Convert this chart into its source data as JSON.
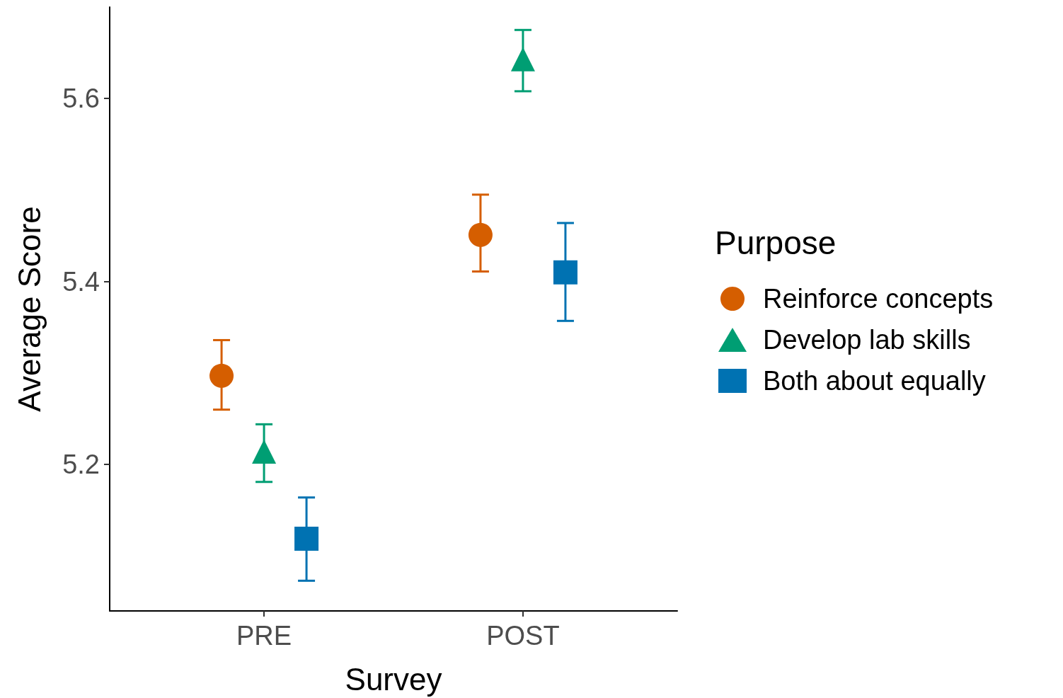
{
  "chart_data": {
    "type": "scatter",
    "xlabel": "Survey",
    "ylabel": "Average Score",
    "legend_title": "Purpose",
    "categories": [
      "PRE",
      "POST"
    ],
    "series": [
      {
        "name": "Reinforce concepts",
        "color": "#d55e00",
        "marker": "circle",
        "values": [
          5.297,
          5.451
        ],
        "errors": [
          [
            5.26,
            5.336
          ],
          [
            5.411,
            5.495
          ]
        ]
      },
      {
        "name": "Develop lab skills",
        "color": "#009e73",
        "marker": "triangle",
        "values": [
          5.214,
          5.643
        ],
        "errors": [
          [
            5.181,
            5.244
          ],
          [
            5.608,
            5.675
          ]
        ]
      },
      {
        "name": "Both about equally",
        "color": "#0072b2",
        "marker": "square",
        "values": [
          5.119,
          5.41
        ],
        "errors": [
          [
            5.073,
            5.164
          ],
          [
            5.357,
            5.464
          ]
        ]
      }
    ],
    "ylim": [
      5.04,
      5.7
    ],
    "yticks": [
      5.2,
      5.4,
      5.6
    ],
    "grid": false,
    "legend": "right"
  }
}
